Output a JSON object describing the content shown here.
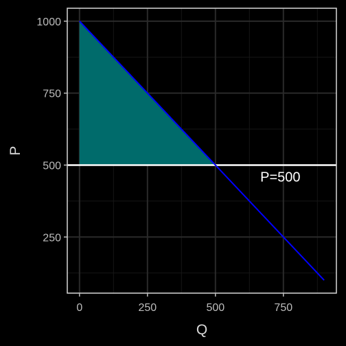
{
  "chart_data": {
    "type": "line",
    "title": "",
    "xlabel": "Q",
    "ylabel": "P",
    "xlim": [
      -45,
      945
    ],
    "ylim": [
      55,
      1045
    ],
    "x_ticks": [
      0,
      250,
      500,
      750
    ],
    "x_tick_labels": [
      "0",
      "250",
      "500",
      "750"
    ],
    "y_ticks": [
      250,
      500,
      750,
      1000
    ],
    "y_tick_labels": [
      "250",
      "500",
      "750",
      "1000"
    ],
    "grid": true,
    "series": [
      {
        "kind": "demand-curve",
        "color": "#0000ff",
        "x": [
          0,
          900
        ],
        "y": [
          1000,
          100
        ]
      }
    ],
    "hline": {
      "y": 500,
      "color": "#ffffff"
    },
    "shaded_region": {
      "color": "#006b6b",
      "x": [
        0,
        500,
        0
      ],
      "y": [
        1000,
        500,
        500
      ]
    },
    "annotation": {
      "text": "P=500",
      "x": 665,
      "y": 459
    },
    "colors": {
      "background": "#000000",
      "panel_border": "#d9d9d9",
      "grid_major": "#2a2a2a",
      "grid_minor": "#161616"
    }
  }
}
